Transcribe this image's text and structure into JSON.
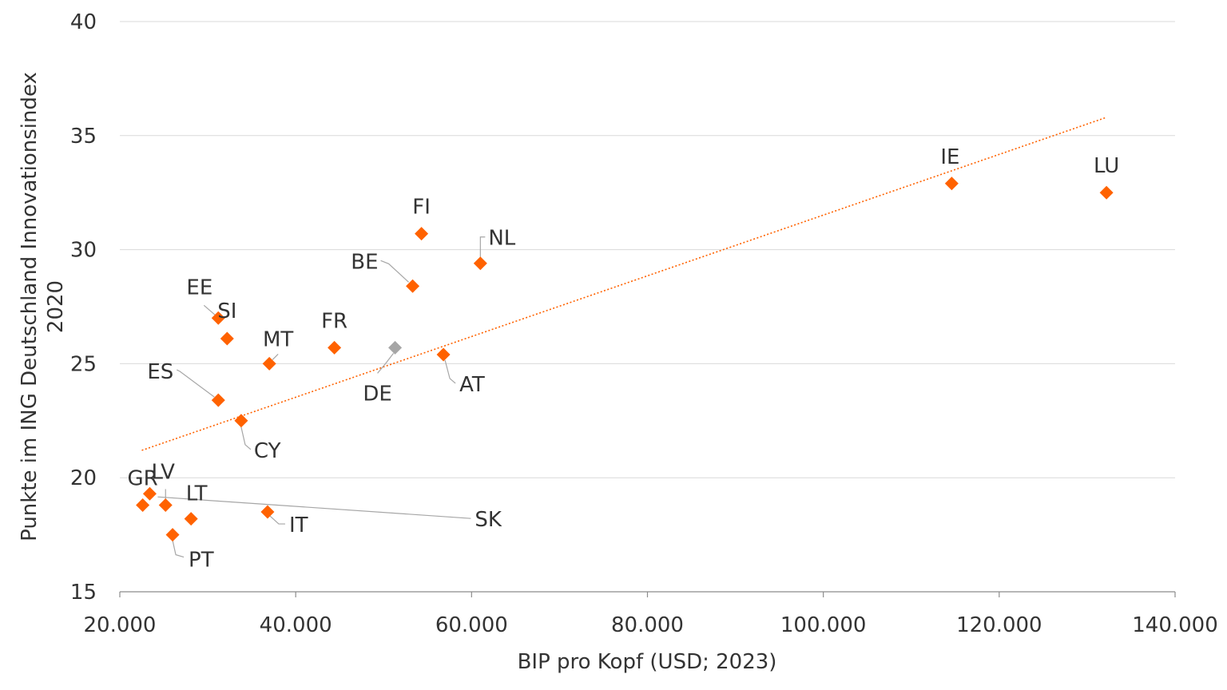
{
  "chart_data": {
    "type": "scatter",
    "title": "",
    "xlabel": "BIP pro Kopf (USD; 2023)",
    "ylabel_line1": "Punkte im ING Deutschland Innovationsindex",
    "ylabel_line2": "2020",
    "xlim": [
      20000,
      140000
    ],
    "ylim": [
      15,
      40
    ],
    "x_ticks": [
      20000,
      40000,
      60000,
      80000,
      100000,
      120000,
      140000
    ],
    "x_tick_labels": [
      "20.000",
      "40.000",
      "60.000",
      "80.000",
      "100.000",
      "120.000",
      "140.000"
    ],
    "y_ticks": [
      15,
      20,
      25,
      30,
      35,
      40
    ],
    "y_tick_labels": [
      "15",
      "20",
      "25",
      "30",
      "35",
      "40"
    ],
    "colors": {
      "marker": "#ff6200",
      "highlight": "#a6a6a6",
      "trend": "#ff6200"
    },
    "points": [
      {
        "label": "LU",
        "x": 132200,
        "y": 32.5
      },
      {
        "label": "IE",
        "x": 114600,
        "y": 32.9
      },
      {
        "label": "FI",
        "x": 54300,
        "y": 30.7
      },
      {
        "label": "NL",
        "x": 61000,
        "y": 29.4
      },
      {
        "label": "BE",
        "x": 53300,
        "y": 28.4
      },
      {
        "label": "EE",
        "x": 31200,
        "y": 27.0
      },
      {
        "label": "SI",
        "x": 32200,
        "y": 26.1
      },
      {
        "label": "FR",
        "x": 44400,
        "y": 25.7
      },
      {
        "label": "DE",
        "x": 51300,
        "y": 25.7,
        "highlight": true
      },
      {
        "label": "AT",
        "x": 56800,
        "y": 25.4
      },
      {
        "label": "MT",
        "x": 37000,
        "y": 25.0
      },
      {
        "label": "ES",
        "x": 31200,
        "y": 23.4
      },
      {
        "label": "CY",
        "x": 33800,
        "y": 22.5
      },
      {
        "label": "LV",
        "x": 25200,
        "y": 18.8
      },
      {
        "label": "GR",
        "x": 22600,
        "y": 18.8
      },
      {
        "label": "SK",
        "x": 23400,
        "y": 19.3
      },
      {
        "label": "IT",
        "x": 36800,
        "y": 18.5
      },
      {
        "label": "LT",
        "x": 28100,
        "y": 18.2
      },
      {
        "label": "PT",
        "x": 26000,
        "y": 17.5
      }
    ],
    "trendline": {
      "type": "linear",
      "x_start": 22500,
      "y_start": 21.2,
      "x_end": 132200,
      "y_end": 35.8
    }
  }
}
